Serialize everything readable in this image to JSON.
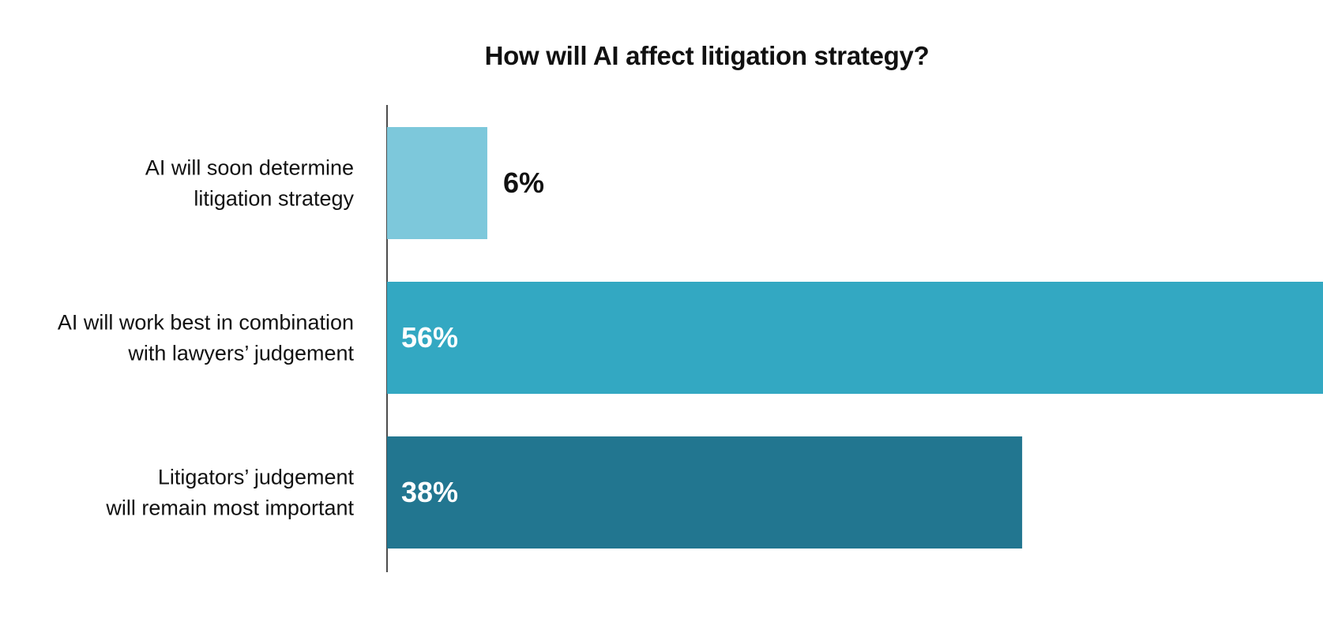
{
  "chart_data": {
    "type": "bar",
    "orientation": "horizontal",
    "title": "How will AI affect litigation strategy?",
    "xlabel": "",
    "ylabel": "",
    "categories": [
      [
        "AI will soon determine",
        "litigation strategy"
      ],
      [
        "AI will work best in combination",
        "with lawyers’ judgement"
      ],
      [
        "Litigators’ judgement",
        "will remain most important"
      ]
    ],
    "values": [
      6,
      56,
      38
    ],
    "value_labels": [
      "6%",
      "56%",
      "38%"
    ],
    "colors": [
      "#7dc8db",
      "#33a8c2",
      "#227690"
    ],
    "xlim": [
      0,
      56
    ],
    "grid": false,
    "legend": "none"
  }
}
